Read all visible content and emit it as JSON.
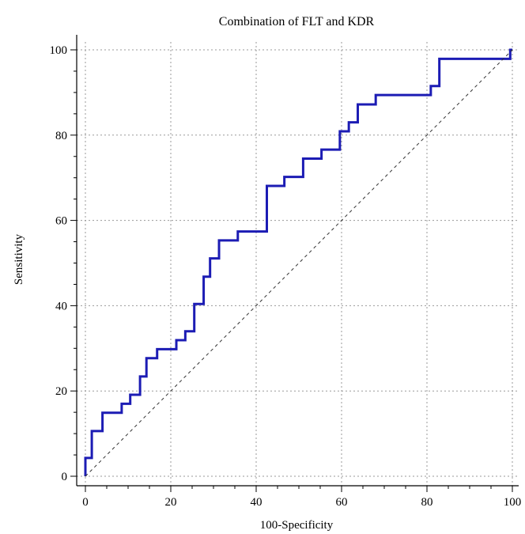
{
  "chart_data": {
    "type": "line",
    "title": "Combination of FLT and KDR",
    "xlabel": "100-Specificity",
    "ylabel": "Sensitivity",
    "xlim": [
      0,
      100
    ],
    "ylim": [
      0,
      100
    ],
    "xticks": [
      0,
      20,
      40,
      60,
      80,
      100
    ],
    "yticks": [
      0,
      20,
      40,
      60,
      80,
      100
    ],
    "x_tick_labels": [
      "0",
      "20",
      "40",
      "60",
      "80",
      "100"
    ],
    "y_tick_labels": [
      "0",
      "20",
      "40",
      "60",
      "80",
      "100"
    ],
    "grid": true,
    "grid_style": "dotted",
    "series": [
      {
        "role": "roc-curve",
        "color": "#1c1cb4",
        "points": [
          [
            0,
            0
          ],
          [
            0,
            4.3
          ],
          [
            1.5,
            4.3
          ],
          [
            1.5,
            10.6
          ],
          [
            4,
            10.6
          ],
          [
            4,
            14.9
          ],
          [
            8.5,
            14.9
          ],
          [
            8.5,
            17
          ],
          [
            10.5,
            17
          ],
          [
            10.5,
            19.1
          ],
          [
            12.8,
            19.1
          ],
          [
            12.8,
            23.4
          ],
          [
            14.3,
            23.4
          ],
          [
            14.3,
            27.7
          ],
          [
            16.8,
            27.7
          ],
          [
            16.8,
            29.8
          ],
          [
            21.3,
            29.8
          ],
          [
            21.3,
            31.9
          ],
          [
            23.4,
            31.9
          ],
          [
            23.4,
            34
          ],
          [
            25.5,
            34
          ],
          [
            25.5,
            40.4
          ],
          [
            27.7,
            40.4
          ],
          [
            27.7,
            46.8
          ],
          [
            29.2,
            46.8
          ],
          [
            29.2,
            51.1
          ],
          [
            31.3,
            51.1
          ],
          [
            31.3,
            55.3
          ],
          [
            35.7,
            55.3
          ],
          [
            35.7,
            57.4
          ],
          [
            42.5,
            57.4
          ],
          [
            42.5,
            68.1
          ],
          [
            46.6,
            68.1
          ],
          [
            46.6,
            70.2
          ],
          [
            51,
            70.2
          ],
          [
            51,
            74.5
          ],
          [
            55.3,
            74.5
          ],
          [
            55.3,
            76.6
          ],
          [
            59.6,
            76.6
          ],
          [
            59.6,
            80.9
          ],
          [
            61.7,
            80.9
          ],
          [
            61.7,
            83
          ],
          [
            63.8,
            83
          ],
          [
            63.8,
            87.2
          ],
          [
            68,
            87.2
          ],
          [
            68,
            89.4
          ],
          [
            80.9,
            89.4
          ],
          [
            80.9,
            91.5
          ],
          [
            82.9,
            91.5
          ],
          [
            82.9,
            97.9
          ],
          [
            99.5,
            97.9
          ],
          [
            99.5,
            100
          ],
          [
            100,
            100
          ]
        ]
      },
      {
        "role": "reference-line",
        "color": "#333333",
        "points": [
          [
            0,
            0
          ],
          [
            100,
            100
          ]
        ]
      }
    ]
  }
}
